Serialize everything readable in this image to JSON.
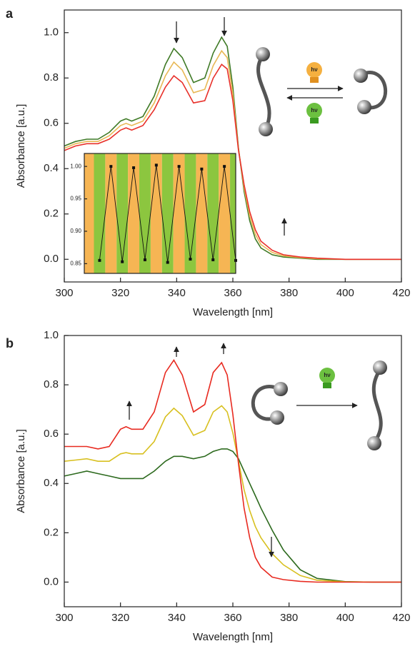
{
  "chart_data": [
    {
      "type": "line",
      "panel_label": "a",
      "x_label": "Wavelength [nm]",
      "y_label": "Absorbance [a.u.]",
      "annotations": [
        "hν",
        "hν"
      ],
      "xlim": [
        300,
        420
      ],
      "xticks": [
        300,
        320,
        340,
        360,
        380,
        400,
        420
      ],
      "ylim": [
        -0.1,
        1.1
      ],
      "yticks": [
        {
          "value": 0,
          "label": "0.0"
        },
        0.2,
        0.4,
        0.6,
        0.8,
        {
          "value": 1,
          "label": "1.0"
        }
      ],
      "x": [
        300,
        304,
        308,
        312,
        316,
        320,
        322,
        324,
        328,
        332,
        336,
        339,
        342,
        346,
        350,
        353,
        356,
        358,
        360,
        362,
        364,
        366,
        368,
        370,
        374,
        378,
        384,
        390,
        400,
        410,
        420
      ],
      "series": [
        {
          "color": "#3f7a26",
          "values": [
            0.5,
            0.52,
            0.53,
            0.53,
            0.56,
            0.61,
            0.62,
            0.61,
            0.63,
            0.72,
            0.86,
            0.93,
            0.89,
            0.78,
            0.8,
            0.91,
            0.98,
            0.94,
            0.76,
            0.49,
            0.3,
            0.17,
            0.09,
            0.05,
            0.02,
            0.01,
            0.005,
            0,
            0,
            0,
            0
          ]
        },
        {
          "color": "#e8b855",
          "values": [
            0.49,
            0.51,
            0.52,
            0.52,
            0.545,
            0.59,
            0.6,
            0.59,
            0.61,
            0.69,
            0.81,
            0.87,
            0.835,
            0.735,
            0.75,
            0.855,
            0.92,
            0.89,
            0.73,
            0.485,
            0.315,
            0.19,
            0.11,
            0.065,
            0.03,
            0.015,
            0.0075,
            0.0025,
            0,
            0,
            0
          ]
        },
        {
          "color": "#e8302a",
          "values": [
            0.48,
            0.5,
            0.51,
            0.51,
            0.53,
            0.57,
            0.58,
            0.57,
            0.59,
            0.66,
            0.76,
            0.81,
            0.78,
            0.69,
            0.7,
            0.8,
            0.86,
            0.84,
            0.7,
            0.48,
            0.33,
            0.21,
            0.13,
            0.08,
            0.04,
            0.02,
            0.01,
            0.005,
            0,
            0,
            0
          ]
        }
      ]
    },
    {
      "type": "inset",
      "ylim": [
        0.835,
        1.02
      ],
      "yticks": [
        0.85,
        {
          "value": 0.9,
          "label": "0.90"
        },
        0.95,
        {
          "value": 1,
          "label": "1.00"
        }
      ],
      "background_colors": [
        "#8cc63f",
        "#f6b554"
      ],
      "color": "#111",
      "values": [
        0.855,
        1.0,
        0.853,
        0.998,
        0.856,
        1.002,
        0.852,
        1.0,
        0.857,
        0.996,
        0.856,
        1.0,
        0.855
      ]
    },
    {
      "type": "line",
      "panel_label": "b",
      "x_label": "Wavelength [nm]",
      "y_label": "Absorbance [a.u.]",
      "annotations": [
        "hν"
      ],
      "xlim": [
        300,
        420
      ],
      "xticks": [
        300,
        320,
        340,
        360,
        380,
        400,
        420
      ],
      "ylim": [
        -0.1,
        1.0
      ],
      "yticks": [
        {
          "value": 0,
          "label": "0.0"
        },
        0.2,
        0.4,
        0.6,
        0.8,
        {
          "value": 1,
          "label": "1.0"
        }
      ],
      "x": [
        300,
        304,
        308,
        312,
        316,
        320,
        322,
        324,
        328,
        332,
        336,
        339,
        342,
        346,
        350,
        353,
        356,
        358,
        360,
        362,
        364,
        366,
        368,
        370,
        374,
        378,
        384,
        390,
        400,
        410,
        420
      ],
      "series": [
        {
          "color": "#2d6a1e",
          "values": [
            0.43,
            0.44,
            0.45,
            0.44,
            0.43,
            0.42,
            0.42,
            0.42,
            0.42,
            0.45,
            0.49,
            0.51,
            0.51,
            0.5,
            0.51,
            0.53,
            0.54,
            0.54,
            0.53,
            0.5,
            0.45,
            0.4,
            0.35,
            0.3,
            0.21,
            0.13,
            0.05,
            0.015,
            0.002,
            0,
            0
          ]
        },
        {
          "color": "#d8c020",
          "values": [
            0.49,
            0.495,
            0.5,
            0.49,
            0.49,
            0.52,
            0.525,
            0.52,
            0.52,
            0.57,
            0.67,
            0.705,
            0.675,
            0.595,
            0.615,
            0.69,
            0.715,
            0.69,
            0.605,
            0.49,
            0.375,
            0.29,
            0.225,
            0.18,
            0.115,
            0.07,
            0.0265,
            0.0075,
            0.001,
            0,
            0
          ]
        },
        {
          "color": "#e82a20",
          "values": [
            0.55,
            0.55,
            0.55,
            0.54,
            0.55,
            0.62,
            0.63,
            0.62,
            0.62,
            0.69,
            0.85,
            0.9,
            0.84,
            0.69,
            0.72,
            0.85,
            0.89,
            0.84,
            0.68,
            0.48,
            0.3,
            0.18,
            0.1,
            0.06,
            0.02,
            0.01,
            0.003,
            0,
            0,
            0,
            0
          ]
        }
      ]
    }
  ]
}
